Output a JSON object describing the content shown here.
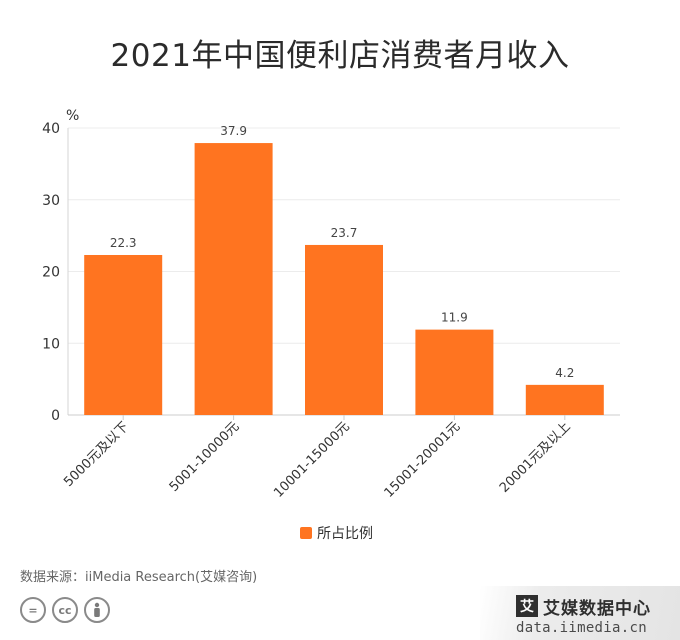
{
  "chart_data": {
    "type": "bar",
    "title": "2021年中国便利店消费者月收入",
    "ylabel": "%",
    "xlabel": "",
    "ylim": [
      0,
      40
    ],
    "yticks": [
      0,
      10,
      20,
      30,
      40
    ],
    "grid": true,
    "legend_position": "bottom",
    "categories": [
      "5000元及以下",
      "5001-10000元",
      "10001-15000元",
      "15001-20001元",
      "20001元及以上"
    ],
    "series": [
      {
        "name": "所占比例",
        "values": [
          22.3,
          37.9,
          23.7,
          11.9,
          4.2
        ],
        "color": "#ff7420"
      }
    ]
  },
  "footer": {
    "source": "数据来源：iiMedia Research(艾媒咨询)",
    "license_icons": [
      "=",
      "cc",
      "person-icon"
    ]
  },
  "brand": {
    "logo_glyph": "艾",
    "name": "艾媒数据中心",
    "url": "data.iimedia.cn"
  }
}
